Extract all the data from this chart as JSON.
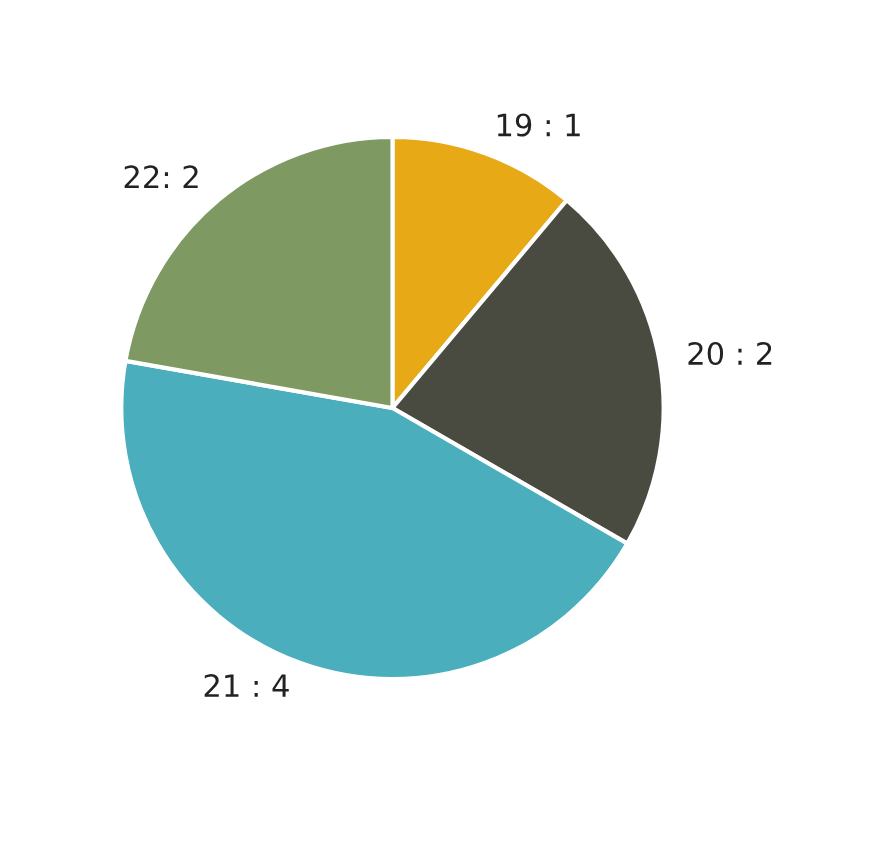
{
  "chart_data": {
    "type": "pie",
    "categories": [
      "19 : 1",
      "20 : 2",
      "21 : 4",
      "22: 2"
    ],
    "values": [
      1,
      2,
      4,
      2
    ],
    "colors": [
      "#e8a917",
      "#4a4b40",
      "#4aaebd",
      "#7e9a62"
    ]
  }
}
